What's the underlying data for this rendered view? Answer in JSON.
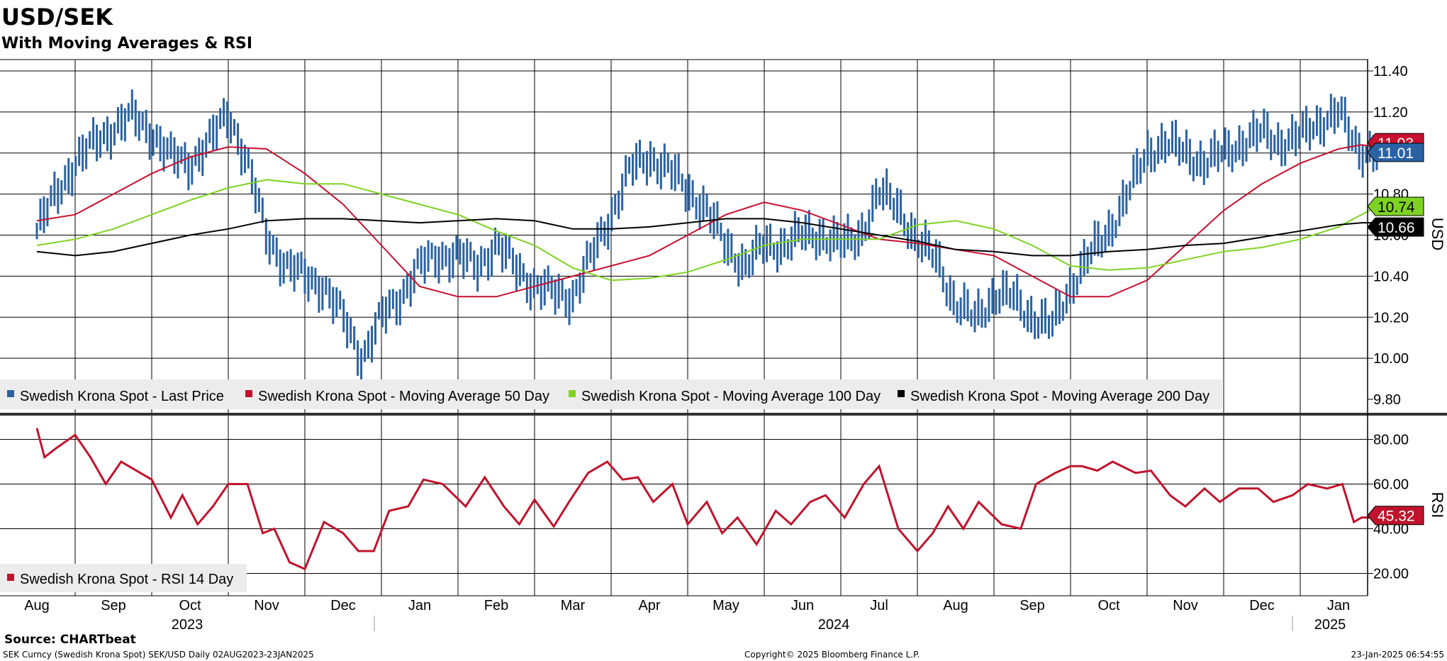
{
  "header": {
    "title": "USD/SEK",
    "subtitle": "With Moving Averages & RSI"
  },
  "footer": {
    "source": "Source: CHARTbeat",
    "ticker_line": "SEK Curncy (Swedish Krona Spot) SEK/USD  Daily 02AUG2023-23JAN2025",
    "copyright": "Copyright© 2025 Bloomberg Finance L.P.",
    "timestamp": "23-Jan-2025 06:54:55"
  },
  "colors": {
    "price": "#2a62a4",
    "ma50": "#c8102e",
    "ma100": "#7ed321",
    "ma200": "#000000",
    "rsi": "#c0142c",
    "grid": "#000000",
    "legend_bg": "#ececec"
  },
  "chart_data": [
    {
      "type": "line",
      "panel": "price",
      "ylabel": "USD",
      "ylim": [
        9.8,
        11.4
      ],
      "yticks": [
        "11.40",
        "11.20",
        "11.00",
        "10.80",
        "10.60",
        "10.40",
        "10.20",
        "10.00",
        "9.80"
      ],
      "x_months": [
        "Aug",
        "Sep",
        "Oct",
        "Nov",
        "Dec",
        "Jan",
        "Feb",
        "Mar",
        "Apr",
        "May",
        "Jun",
        "Jul",
        "Aug",
        "Sep",
        "Oct",
        "Nov",
        "Dec",
        "Jan"
      ],
      "x_years": [
        "2023",
        "2024",
        "2025"
      ],
      "x_range": [
        0,
        17.7
      ],
      "series": [
        {
          "name": "Swedish Krona Spot - Last Price",
          "style": "bars",
          "x": [
            0,
            0.25,
            0.5,
            0.75,
            1,
            1.25,
            1.5,
            1.75,
            2,
            2.25,
            2.5,
            2.75,
            3,
            3.25,
            3.5,
            3.75,
            4,
            4.25,
            4.5,
            4.75,
            5,
            5.25,
            5.5,
            5.75,
            6,
            6.25,
            6.5,
            6.75,
            7,
            7.25,
            7.5,
            7.75,
            8,
            8.25,
            8.5,
            8.75,
            9,
            9.25,
            9.5,
            9.75,
            10,
            10.25,
            10.5,
            10.75,
            11,
            11.25,
            11.5,
            11.75,
            12,
            12.25,
            12.5,
            12.75,
            13,
            13.25,
            13.5,
            13.75,
            14,
            14.25,
            14.5,
            14.75,
            15,
            15.25,
            15.5,
            15.75,
            16,
            16.25,
            16.5,
            16.75,
            17,
            17.25,
            17.5
          ],
          "values": [
            10.62,
            10.8,
            10.95,
            11.05,
            11.12,
            11.18,
            11.1,
            10.98,
            10.95,
            11.05,
            11.2,
            10.95,
            10.6,
            10.45,
            10.4,
            10.35,
            10.2,
            10.0,
            10.2,
            10.3,
            10.45,
            10.5,
            10.5,
            10.45,
            10.55,
            10.45,
            10.35,
            10.32,
            10.3,
            10.5,
            10.7,
            10.92,
            10.98,
            10.92,
            10.82,
            10.72,
            10.55,
            10.45,
            10.55,
            10.55,
            10.6,
            10.6,
            10.55,
            10.6,
            10.8,
            10.75,
            10.55,
            10.5,
            10.25,
            10.2,
            10.3,
            10.3,
            10.2,
            10.15,
            10.35,
            10.5,
            10.62,
            10.8,
            11.0,
            11.05,
            11.0,
            10.95,
            11.0,
            11.05,
            11.1,
            11.05,
            11.08,
            11.15,
            11.2,
            11.02,
            11.01
          ],
          "last": "11.01"
        },
        {
          "name": "Swedish Krona Spot - Moving Average 50 Day",
          "style": "line",
          "x": [
            0,
            0.5,
            1,
            1.5,
            2,
            2.5,
            3,
            3.5,
            4,
            4.5,
            5,
            5.5,
            6,
            6.5,
            7,
            7.5,
            8,
            8.5,
            9,
            9.5,
            10,
            10.5,
            11,
            11.5,
            12,
            12.5,
            13,
            13.5,
            14,
            14.5,
            15,
            15.5,
            16,
            16.5,
            17,
            17.3,
            17.5
          ],
          "values": [
            10.67,
            10.7,
            10.8,
            10.9,
            10.98,
            11.03,
            11.02,
            10.9,
            10.75,
            10.55,
            10.35,
            10.3,
            10.3,
            10.35,
            10.4,
            10.45,
            10.5,
            10.6,
            10.7,
            10.76,
            10.72,
            10.65,
            10.58,
            10.56,
            10.53,
            10.5,
            10.4,
            10.3,
            10.3,
            10.38,
            10.55,
            10.72,
            10.85,
            10.95,
            11.02,
            11.04,
            11.03
          ],
          "last": "11.03"
        },
        {
          "name": "Swedish Krona Spot - Moving Average 100 Day",
          "style": "line",
          "x": [
            0,
            0.5,
            1,
            1.5,
            2,
            2.5,
            3,
            3.5,
            4,
            4.5,
            5,
            5.5,
            6,
            6.5,
            7,
            7.5,
            8,
            8.5,
            9,
            9.5,
            10,
            10.5,
            11,
            11.5,
            12,
            12.5,
            13,
            13.5,
            14,
            14.5,
            15,
            15.5,
            16,
            16.5,
            17,
            17.3,
            17.5
          ],
          "values": [
            10.55,
            10.58,
            10.63,
            10.7,
            10.77,
            10.83,
            10.87,
            10.85,
            10.85,
            10.8,
            10.75,
            10.7,
            10.62,
            10.55,
            10.44,
            10.38,
            10.39,
            10.42,
            10.48,
            10.55,
            10.58,
            10.58,
            10.58,
            10.65,
            10.67,
            10.63,
            10.55,
            10.45,
            10.43,
            10.44,
            10.48,
            10.52,
            10.54,
            10.58,
            10.64,
            10.7,
            10.74
          ],
          "last": "10.74"
        },
        {
          "name": "Swedish Krona Spot - Moving Average 200 Day",
          "style": "line",
          "x": [
            0,
            0.5,
            1,
            1.5,
            2,
            2.5,
            3,
            3.5,
            4,
            4.5,
            5,
            5.5,
            6,
            6.5,
            7,
            7.5,
            8,
            8.5,
            9,
            9.5,
            10,
            10.5,
            11,
            11.5,
            12,
            12.5,
            13,
            13.5,
            14,
            14.5,
            15,
            15.5,
            16,
            16.5,
            17,
            17.3,
            17.5
          ],
          "values": [
            10.52,
            10.5,
            10.52,
            10.56,
            10.6,
            10.63,
            10.67,
            10.68,
            10.68,
            10.67,
            10.66,
            10.67,
            10.68,
            10.67,
            10.63,
            10.63,
            10.64,
            10.66,
            10.68,
            10.68,
            10.66,
            10.63,
            10.6,
            10.57,
            10.53,
            10.52,
            10.5,
            10.5,
            10.52,
            10.53,
            10.55,
            10.56,
            10.59,
            10.62,
            10.65,
            10.66,
            10.66
          ],
          "last": "10.66"
        }
      ]
    },
    {
      "type": "line",
      "panel": "rsi",
      "ylabel": "RSI",
      "ylim": [
        10,
        90
      ],
      "yticks": [
        "80.00",
        "60.00",
        "40.00",
        "20.00"
      ],
      "series": [
        {
          "name": "Swedish Krona Spot - RSI 14 Day",
          "x": [
            0,
            0.1,
            0.25,
            0.5,
            0.7,
            0.9,
            1.1,
            1.3,
            1.5,
            1.75,
            1.9,
            2.1,
            2.3,
            2.5,
            2.75,
            2.95,
            3.1,
            3.3,
            3.5,
            3.75,
            4.0,
            4.2,
            4.4,
            4.6,
            4.85,
            5.05,
            5.3,
            5.6,
            5.85,
            6.1,
            6.3,
            6.5,
            6.75,
            6.95,
            7.2,
            7.45,
            7.65,
            7.85,
            8.05,
            8.3,
            8.5,
            8.75,
            8.95,
            9.15,
            9.4,
            9.65,
            9.85,
            10.1,
            10.3,
            10.55,
            10.8,
            11.0,
            11.25,
            11.5,
            11.7,
            11.9,
            12.1,
            12.3,
            12.6,
            12.85,
            13.05,
            13.3,
            13.5,
            13.65,
            13.85,
            14.05,
            14.35,
            14.55,
            14.8,
            15.0,
            15.25,
            15.45,
            15.7,
            15.95,
            16.15,
            16.4,
            16.6,
            16.85,
            17.05,
            17.2,
            17.3,
            17.5
          ],
          "values": [
            85,
            72,
            76,
            82,
            72,
            60,
            70,
            66,
            62,
            45,
            55,
            42,
            50,
            60,
            60,
            38,
            40,
            25,
            22,
            43,
            38,
            30,
            30,
            48,
            50,
            62,
            60,
            50,
            63,
            50,
            42,
            53,
            41,
            52,
            65,
            70,
            62,
            63,
            52,
            60,
            42,
            52,
            38,
            45,
            33,
            48,
            42,
            52,
            55,
            45,
            60,
            68,
            40,
            30,
            38,
            50,
            40,
            52,
            42,
            40,
            60,
            65,
            68,
            68,
            66,
            70,
            65,
            66,
            55,
            50,
            58,
            52,
            58,
            58,
            52,
            55,
            60,
            58,
            60,
            43,
            45,
            45
          ],
          "last": "45.32"
        }
      ]
    }
  ]
}
